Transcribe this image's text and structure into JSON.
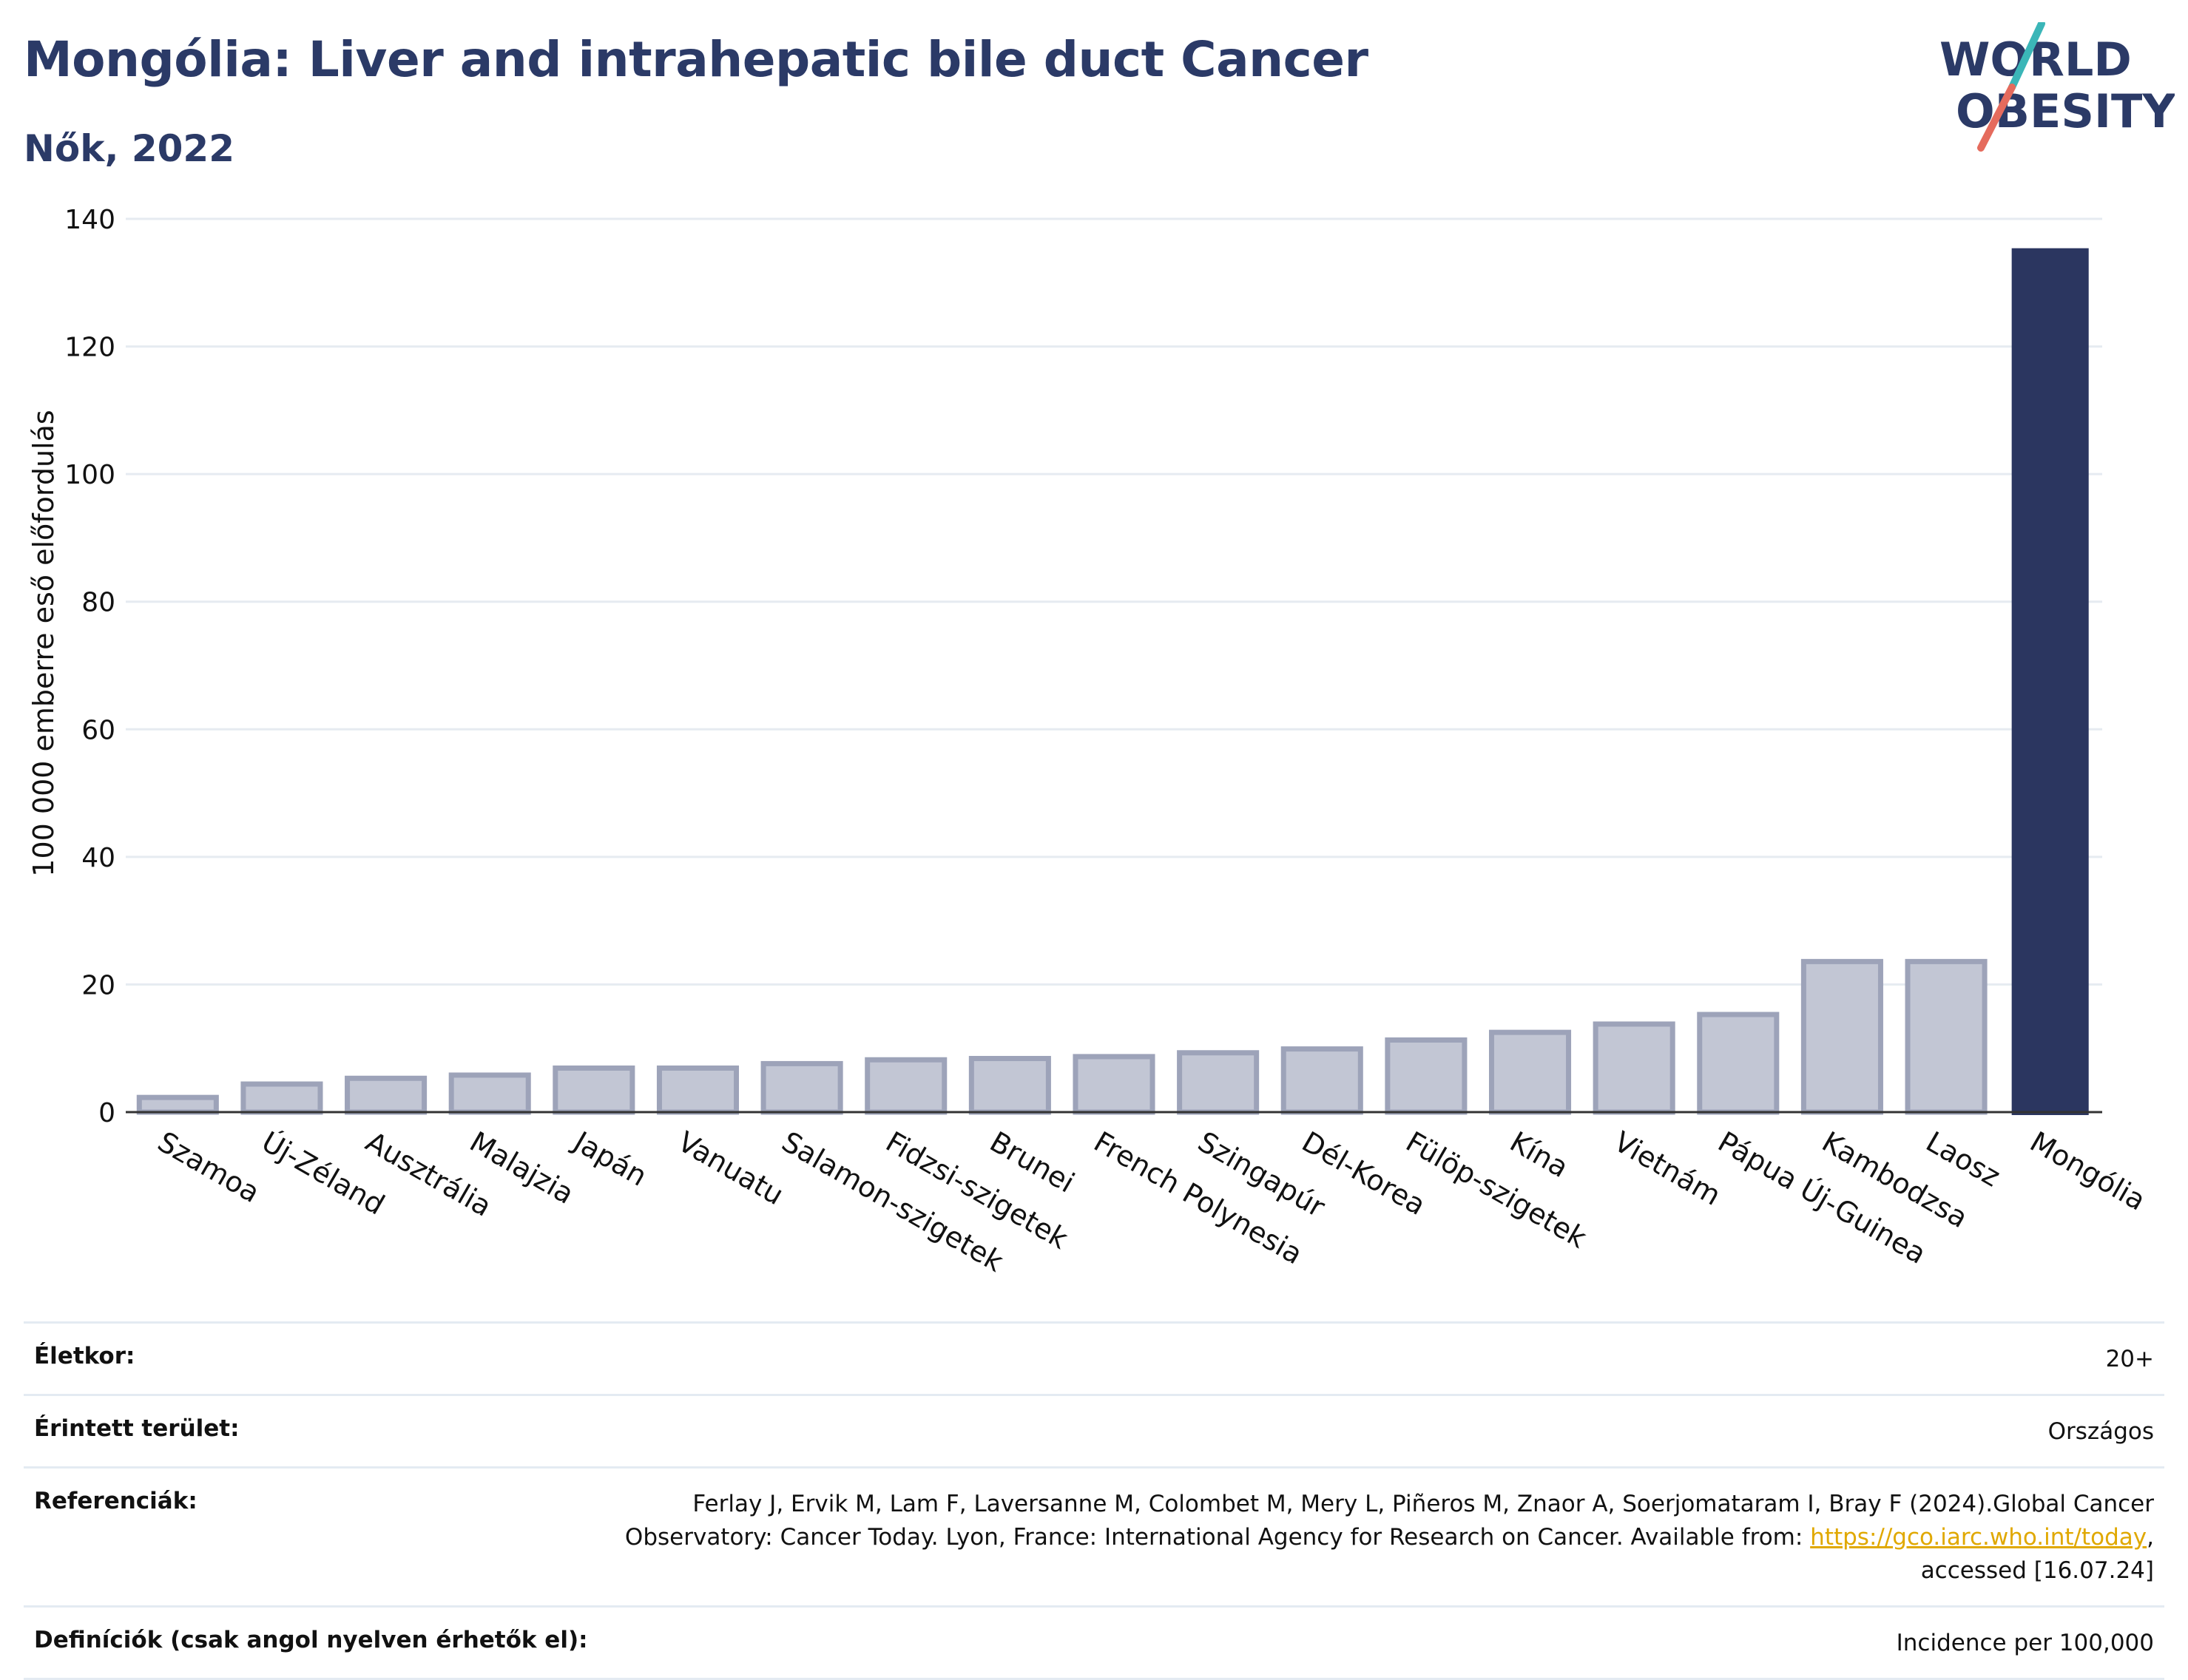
{
  "header": {
    "title": "Mongólia: Liver and intrahepatic bile duct Cancer",
    "subtitle": "Nők, 2022"
  },
  "logo": {
    "line1": "WORLD",
    "line2": "OBESITY",
    "text_color": "#2b3a67",
    "slash_colors": [
      "#3bb6b8",
      "#e56b5d"
    ]
  },
  "colors": {
    "highlight_bar": "#2b3660",
    "other_bar_fill": "#c2c6d4",
    "other_bar_stroke": "#9da3b9",
    "gridline": "#e6ebf1",
    "axis": "#333333"
  },
  "chart_data": {
    "type": "bar",
    "title": "",
    "xlabel": "",
    "ylabel": "100 000 emberre eső előfordulás",
    "ylim": [
      0,
      140
    ],
    "yticks": [
      0,
      20,
      40,
      60,
      80,
      100,
      120,
      140
    ],
    "grid": true,
    "highlight": "Mongólia",
    "categories": [
      "Szamoa",
      "Új-Zéland",
      "Ausztrália",
      "Malajzia",
      "Japán",
      "Vanuatu",
      "Salamon-szigetek",
      "Fidzsi-szigetek",
      "Brunei",
      "French Polynesia",
      "Szingapúr",
      "Dél-Korea",
      "Fülöp-szigetek",
      "Kína",
      "Vietnám",
      "Pápua Új-Guinea",
      "Kambodzsa",
      "Laosz",
      "Mongólia"
    ],
    "values": [
      2.3,
      4.4,
      5.3,
      5.8,
      6.9,
      6.9,
      7.6,
      8.2,
      8.4,
      8.7,
      9.3,
      9.9,
      11.3,
      12.5,
      13.8,
      15.3,
      23.6,
      23.6,
      135.4
    ]
  },
  "meta": {
    "rows": [
      {
        "label": "Életkor:",
        "value": "20+"
      },
      {
        "label": "Érintett terület:",
        "value": "Országos"
      }
    ],
    "references": {
      "label": "Referenciák:",
      "line1": "Ferlay J, Ervik M, Lam F, Laversanne M, Colombet M, Mery L, Piñeros M, Znaor A, Soerjomataram I, Bray F (2024).Global Cancer",
      "line2_prefix": "Observatory: Cancer Today. Lyon, France: International Agency for Research on Cancer. Available from: ",
      "link": "https://gco.iarc.who.int/today",
      "line2_suffix": ",",
      "line3": "accessed [16.07.24]"
    },
    "definitions": {
      "label": "Definíciók (csak angol nyelven érhetők el):",
      "value": "Incidence per 100,000"
    }
  }
}
